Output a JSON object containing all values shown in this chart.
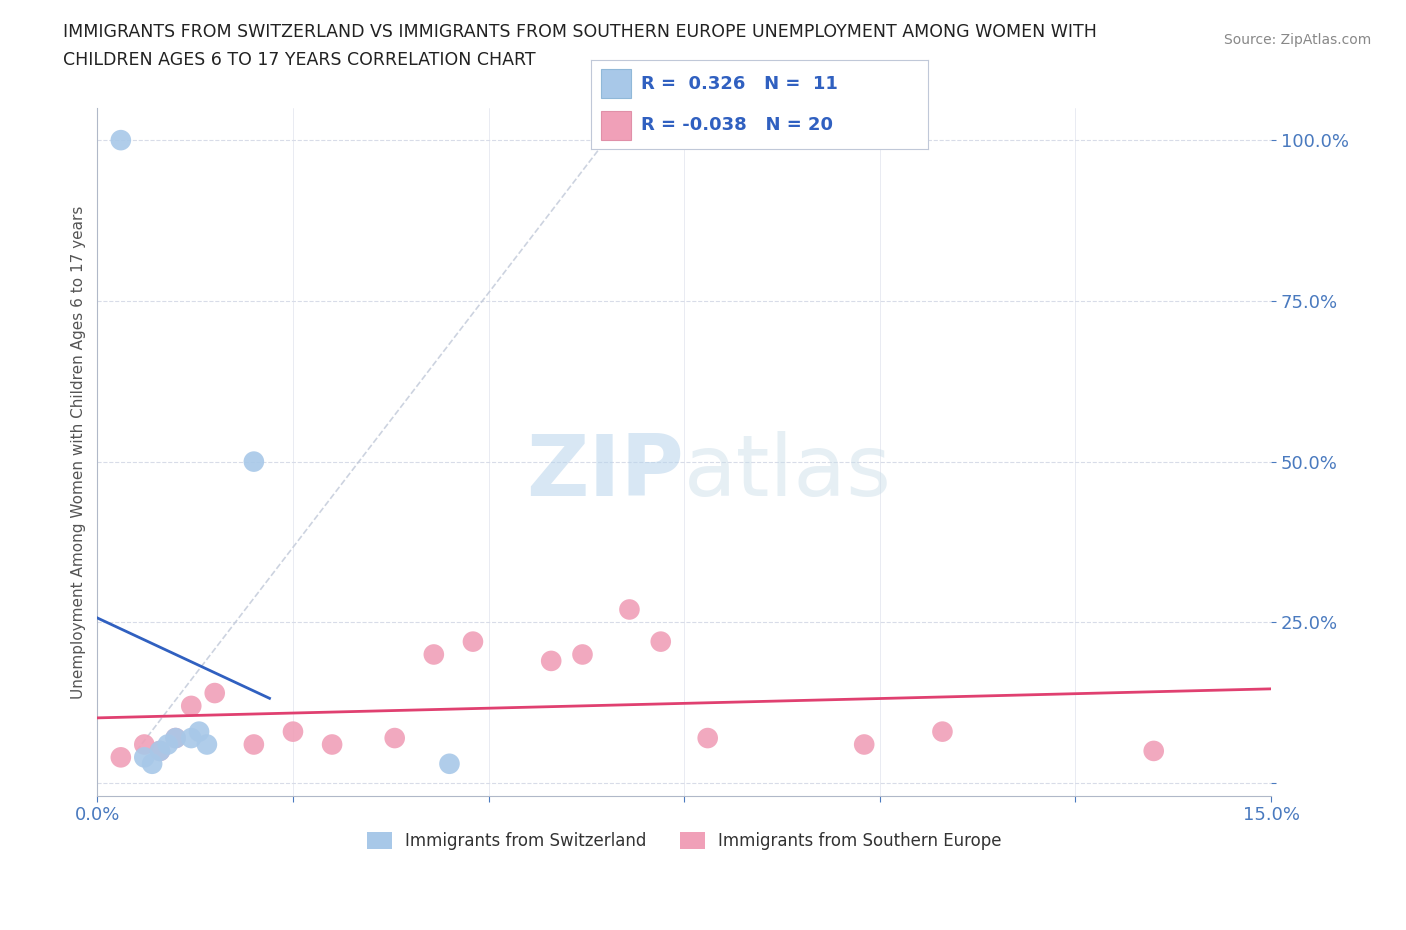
{
  "title_line1": "IMMIGRANTS FROM SWITZERLAND VS IMMIGRANTS FROM SOUTHERN EUROPE UNEMPLOYMENT AMONG WOMEN WITH",
  "title_line2": "CHILDREN AGES 6 TO 17 YEARS CORRELATION CHART",
  "source": "Source: ZipAtlas.com",
  "ylabel": "Unemployment Among Women with Children Ages 6 to 17 years",
  "xlim": [
    0.0,
    0.15
  ],
  "ylim": [
    -0.02,
    1.05
  ],
  "R_switzerland": 0.326,
  "N_switzerland": 11,
  "R_southern_europe": -0.038,
  "N_southern_europe": 20,
  "switzerland_color": "#a8c8e8",
  "southern_europe_color": "#f0a0b8",
  "switzerland_line_color": "#3060c0",
  "southern_europe_line_color": "#e04070",
  "dashed_line_color": "#c0c8d8",
  "watermark_color": "#ddeef8",
  "background_color": "#ffffff",
  "grid_color": "#d8dce8",
  "sw_x": [
    0.003,
    0.006,
    0.007,
    0.008,
    0.009,
    0.01,
    0.012,
    0.013,
    0.014,
    0.02,
    0.045
  ],
  "sw_y": [
    1.0,
    0.04,
    0.03,
    0.05,
    0.06,
    0.07,
    0.07,
    0.08,
    0.06,
    0.5,
    0.03
  ],
  "se_x": [
    0.003,
    0.006,
    0.008,
    0.01,
    0.012,
    0.015,
    0.02,
    0.025,
    0.03,
    0.038,
    0.043,
    0.048,
    0.058,
    0.062,
    0.068,
    0.072,
    0.078,
    0.098,
    0.108,
    0.135
  ],
  "se_y": [
    0.04,
    0.06,
    0.05,
    0.07,
    0.12,
    0.14,
    0.06,
    0.08,
    0.06,
    0.07,
    0.2,
    0.22,
    0.19,
    0.2,
    0.27,
    0.22,
    0.07,
    0.06,
    0.08,
    0.05
  ],
  "legend_labels": [
    "Immigrants from Switzerland",
    "Immigrants from Southern Europe"
  ]
}
